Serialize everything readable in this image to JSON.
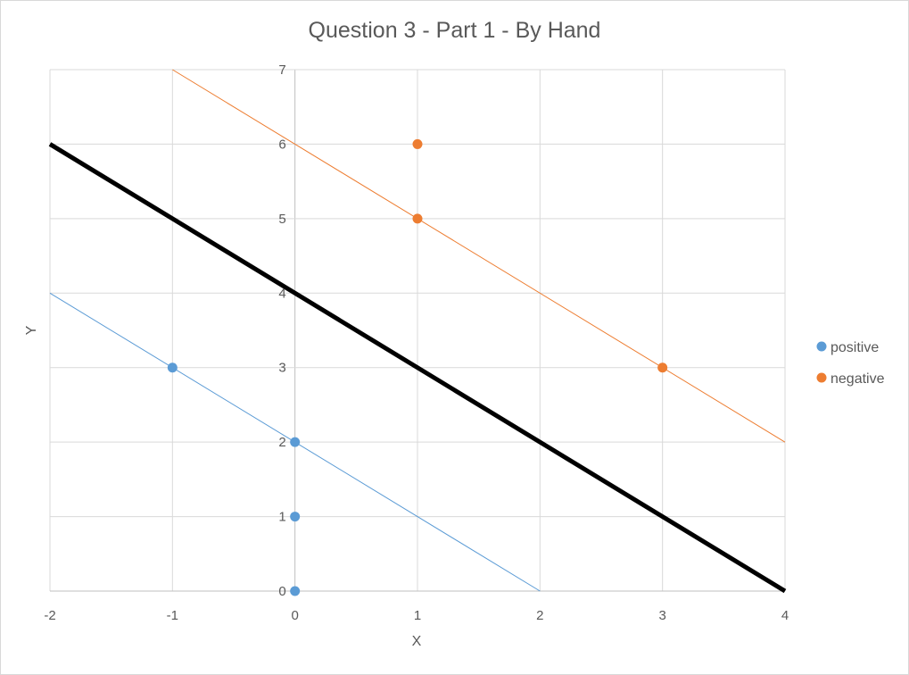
{
  "chart_data": {
    "type": "scatter",
    "title": "Question 3 - Part 1 - By Hand",
    "xlabel": "X",
    "ylabel": "Y",
    "xlim": [
      -2,
      4
    ],
    "ylim": [
      0,
      7
    ],
    "x_ticks": [
      -2,
      -1,
      0,
      1,
      2,
      3,
      4
    ],
    "y_ticks": [
      0,
      1,
      2,
      3,
      4,
      5,
      6,
      7
    ],
    "grid": true,
    "legend_position": "right",
    "series": [
      {
        "name": "positive",
        "color": "#5b9bd5",
        "points": [
          [
            -1,
            3
          ],
          [
            0,
            2
          ],
          [
            0,
            1
          ],
          [
            0,
            0
          ]
        ]
      },
      {
        "name": "negative",
        "color": "#ed7d31",
        "points": [
          [
            1,
            6
          ],
          [
            1,
            5
          ],
          [
            3,
            3
          ]
        ]
      }
    ],
    "lines": [
      {
        "color": "#5b9bd5",
        "points": [
          [
            -2,
            4
          ],
          [
            2,
            0
          ]
        ]
      },
      {
        "color": "#ed7d31",
        "points": [
          [
            -1,
            7
          ],
          [
            4,
            2
          ]
        ]
      },
      {
        "color": "#000000",
        "points": [
          [
            -2,
            6
          ],
          [
            4,
            0
          ]
        ]
      }
    ]
  }
}
